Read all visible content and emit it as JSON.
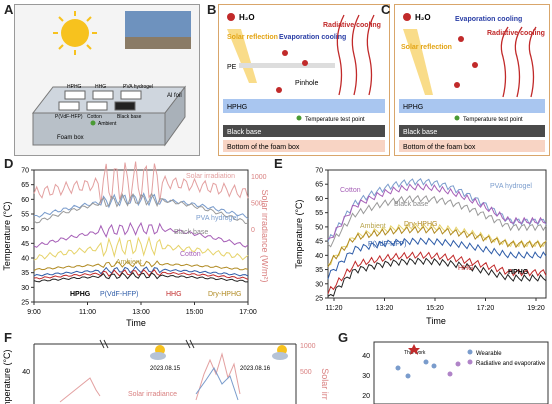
{
  "panels": {
    "A": {
      "label": "A",
      "samples": [
        "HPHG",
        "HHG",
        "PVA hydrogel",
        "P(VdF-HFP)",
        "Cotton",
        "Black base"
      ],
      "annotations": {
        "al_foil": "Al foil",
        "ambient": "Ambient",
        "foam_box": "Foam box"
      }
    },
    "B": {
      "label": "B",
      "h2o": "H₂O",
      "solar_reflection": "Solar reflection",
      "evaporation_cooling": "Evaporation cooling",
      "radiative_cooling": "Radiative cooling",
      "pe": "PE",
      "pinhole": "Pinhole",
      "hphg": "HPHG",
      "temp_point": "Temperature test point",
      "black_base": "Black base",
      "bottom": "Bottom of the foam box"
    },
    "C": {
      "label": "C",
      "h2o": "H₂O",
      "solar_reflection": "Solar reflection",
      "evaporation_cooling": "Evaporation cooling",
      "radiative_cooling": "Radiative cooling",
      "hphg": "HPHG",
      "temp_point": "Temperature test point",
      "black_base": "Black base",
      "bottom": "Bottom of the foam box"
    },
    "F": {
      "label": "F",
      "date1": "2023.08.15",
      "date2": "2023.08.16",
      "solar_irr": "Solar irradiance",
      "y_right": "Solar irr"
    },
    "G": {
      "label": "G",
      "this_work": "This work",
      "legend1": "Wearable",
      "legend2": "Radiative and evaporative"
    }
  },
  "chart_data": [
    {
      "type": "line",
      "panel": "D",
      "label": "D",
      "xlabel": "Time",
      "ylabel": "Temperature (°C)",
      "y2label": "Solar irradiance (W/m²)",
      "xticks": [
        "9:00",
        "11:00",
        "13:00",
        "15:00",
        "17:00"
      ],
      "yticks": [
        25,
        30,
        35,
        40,
        45,
        50,
        55,
        60,
        65,
        70
      ],
      "y2ticks": [
        0,
        500,
        1000
      ],
      "series_labels": [
        "Solar irradiation",
        "PVA hydrogel",
        "Black base",
        "Cotton",
        "Ambient",
        "HPHG",
        "P(VdF-HFP)",
        "HHG",
        "Dry-HPHG"
      ],
      "ylim": [
        25,
        70
      ],
      "xlim": [
        9,
        17
      ]
    },
    {
      "type": "line",
      "panel": "E",
      "label": "E",
      "xlabel": "Time",
      "ylabel": "Temperature (°C)",
      "xticks": [
        "11:20",
        "13:20",
        "15:20",
        "17:20",
        "19:20"
      ],
      "yticks": [
        25,
        30,
        35,
        40,
        45,
        50,
        55,
        60,
        65,
        70
      ],
      "series_labels": [
        "PVA hydrogel",
        "Cotton",
        "Black base",
        "Ambient",
        "Dry-HPHG",
        "P(VdF-HFP)",
        "HHG",
        "HPHG"
      ],
      "ylim": [
        25,
        70
      ]
    },
    {
      "type": "line",
      "panel": "F",
      "ylabel": "Temperature (°C)",
      "yticks": [
        40
      ],
      "y2ticks": [
        500,
        1000
      ]
    },
    {
      "type": "scatter",
      "panel": "G",
      "yticks": [
        20,
        30,
        40
      ]
    }
  ]
}
